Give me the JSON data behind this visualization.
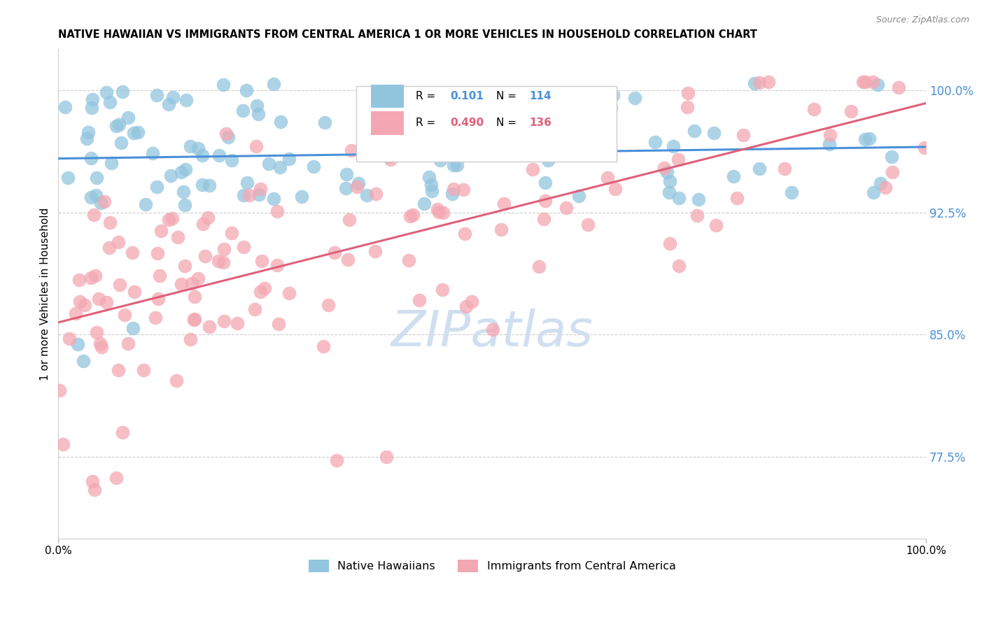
{
  "title": "NATIVE HAWAIIAN VS IMMIGRANTS FROM CENTRAL AMERICA 1 OR MORE VEHICLES IN HOUSEHOLD CORRELATION CHART",
  "source": "Source: ZipAtlas.com",
  "ylabel": "1 or more Vehicles in Household",
  "legend_label1": "Native Hawaiians",
  "legend_label2": "Immigrants from Central America",
  "R1": 0.101,
  "N1": 114,
  "R2": 0.49,
  "N2": 136,
  "color1": "#92c5de",
  "color2": "#f4a7b2",
  "trend_color1": "#4a90d9",
  "trend_color2": "#e0607a",
  "ytick_color": "#4a90d9",
  "xlim": [
    0.0,
    1.0
  ],
  "ylim": [
    0.725,
    1.025
  ],
  "yticks": [
    0.775,
    0.85,
    0.925,
    1.0
  ],
  "ytick_labels": [
    "77.5%",
    "85.0%",
    "92.5%",
    "100.0%"
  ],
  "xtick_labels": [
    "0.0%",
    "100.0%"
  ],
  "background_color": "#ffffff",
  "grid_color": "#cccccc",
  "watermark": "ZIPatlas",
  "watermark_color": "#d0dff0"
}
